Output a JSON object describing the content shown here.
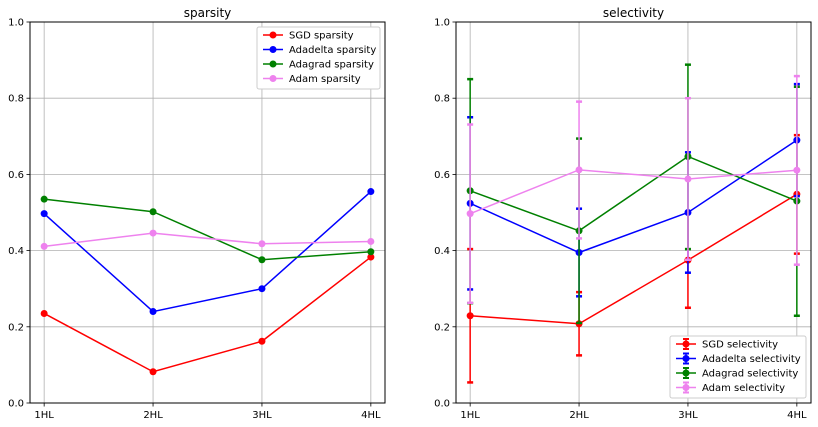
{
  "chart_data": [
    {
      "type": "line",
      "title": "sparsity",
      "categories": [
        "1HL",
        "2HL",
        "3HL",
        "4HL"
      ],
      "ylim": [
        0,
        1
      ],
      "yticks": [
        "0.0",
        "0.2",
        "0.4",
        "0.6",
        "0.8",
        "1.0"
      ],
      "grid": true,
      "legend_position": "top-right",
      "series": [
        {
          "name": "SGD sparsity",
          "color": "#ff0000",
          "values": [
            0.235,
            0.082,
            0.162,
            0.383
          ]
        },
        {
          "name": "Adadelta sparsity",
          "color": "#0000ff",
          "values": [
            0.497,
            0.24,
            0.3,
            0.555
          ]
        },
        {
          "name": "Adagrad sparsity",
          "color": "#008000",
          "values": [
            0.535,
            0.502,
            0.376,
            0.397
          ]
        },
        {
          "name": "Adam sparsity",
          "color": "#ee82ee",
          "values": [
            0.411,
            0.446,
            0.418,
            0.424
          ]
        }
      ]
    },
    {
      "type": "line",
      "title": "selectivity",
      "categories": [
        "1HL",
        "2HL",
        "3HL",
        "4HL"
      ],
      "ylim": [
        0,
        1
      ],
      "yticks": [
        "0.0",
        "0.2",
        "0.4",
        "0.6",
        "0.8",
        "1.0"
      ],
      "grid": true,
      "legend_position": "bottom-right",
      "error_bars": true,
      "series": [
        {
          "name": "SGD selectivity",
          "color": "#ff0000",
          "values": [
            0.229,
            0.208,
            0.375,
            0.548
          ],
          "lower": [
            0.054,
            0.125,
            0.25,
            0.392
          ],
          "upper": [
            0.404,
            0.291,
            0.5,
            0.703
          ]
        },
        {
          "name": "Adadelta selectivity",
          "color": "#0000ff",
          "values": [
            0.524,
            0.395,
            0.5,
            0.69
          ],
          "lower": [
            0.298,
            0.28,
            0.342,
            0.543
          ],
          "upper": [
            0.75,
            0.51,
            0.658,
            0.837
          ]
        },
        {
          "name": "Adagrad selectivity",
          "color": "#008000",
          "values": [
            0.557,
            0.452,
            0.647,
            0.53
          ],
          "lower": [
            0.262,
            0.21,
            0.404,
            0.229
          ],
          "upper": [
            0.85,
            0.694,
            0.888,
            0.83
          ]
        },
        {
          "name": "Adam selectivity",
          "color": "#ee82ee",
          "values": [
            0.497,
            0.612,
            0.588,
            0.611
          ],
          "lower": [
            0.263,
            0.432,
            0.376,
            0.363
          ],
          "upper": [
            0.731,
            0.791,
            0.8,
            0.858
          ]
        }
      ]
    }
  ]
}
